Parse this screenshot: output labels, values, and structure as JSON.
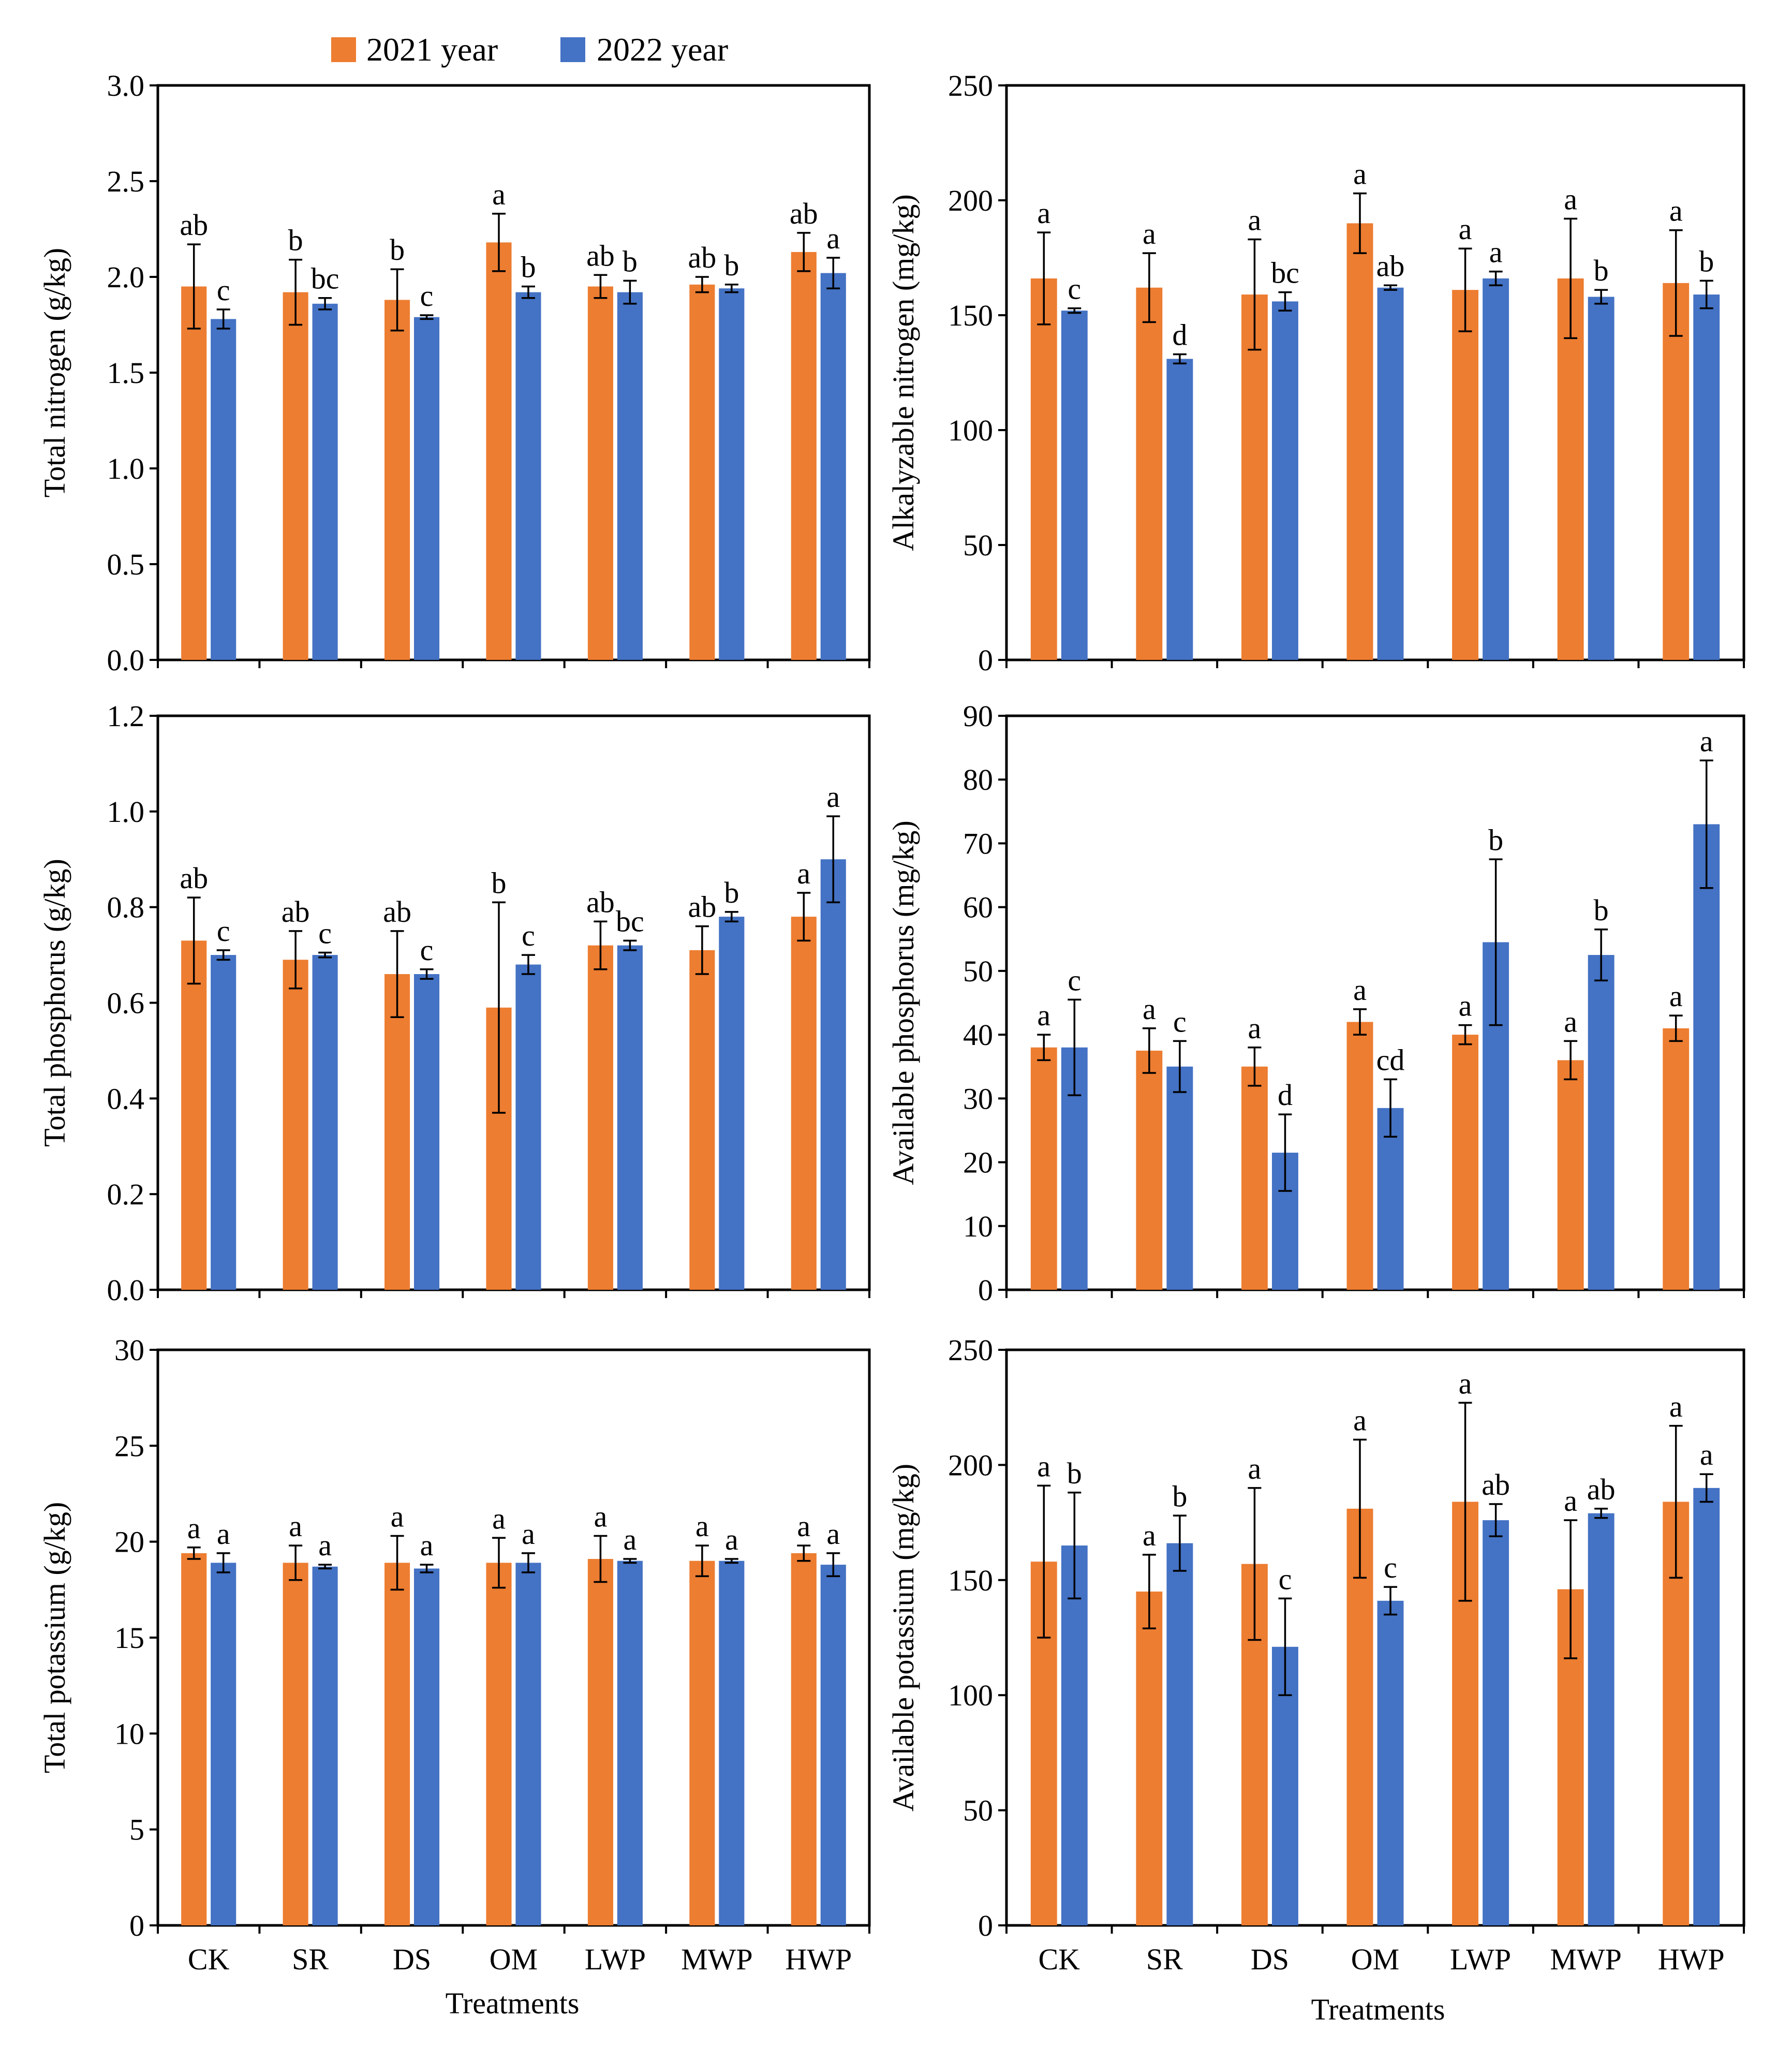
{
  "legend": {
    "items": [
      {
        "label": "2021 year",
        "color": "#ED7D31"
      },
      {
        "label": "2022 year",
        "color": "#4472C4"
      }
    ]
  },
  "xlabel": "Treatments",
  "chart_data": [
    {
      "type": "bar",
      "ylabel": "Total nitrogen (g/kg)",
      "ylim": [
        0,
        3.0
      ],
      "yticks": [
        "0.0",
        "0.5",
        "1.0",
        "1.5",
        "2.0",
        "2.5",
        "3.0"
      ],
      "categories": [
        "CK",
        "SR",
        "DS",
        "OM",
        "LWP",
        "MWP",
        "HWP"
      ],
      "series": [
        {
          "name": "2021 year",
          "values": [
            1.95,
            1.92,
            1.88,
            2.18,
            1.95,
            1.96,
            2.13
          ],
          "errors": [
            0.22,
            0.17,
            0.16,
            0.15,
            0.06,
            0.04,
            0.1
          ],
          "letters": [
            "ab",
            "b",
            "b",
            "a",
            "ab",
            "ab",
            "ab"
          ]
        },
        {
          "name": "2022 year",
          "values": [
            1.78,
            1.86,
            1.79,
            1.92,
            1.92,
            1.94,
            2.02
          ],
          "errors": [
            0.05,
            0.03,
            0.01,
            0.03,
            0.06,
            0.02,
            0.08
          ],
          "letters": [
            "c",
            "bc",
            "c",
            "b",
            "b",
            "b",
            "a"
          ]
        }
      ]
    },
    {
      "type": "bar",
      "ylabel": "Alkalyzable nitrogen (mg/kg)",
      "ylim": [
        0,
        250
      ],
      "yticks": [
        "0",
        "50",
        "100",
        "150",
        "200",
        "250"
      ],
      "categories": [
        "CK",
        "SR",
        "DS",
        "OM",
        "LWP",
        "MWP",
        "HWP"
      ],
      "series": [
        {
          "name": "2021 year",
          "values": [
            166,
            162,
            159,
            190,
            161,
            166,
            164
          ],
          "errors": [
            20,
            15,
            24,
            13,
            18,
            26,
            23
          ],
          "letters": [
            "a",
            "a",
            "a",
            "a",
            "a",
            "a",
            "a"
          ]
        },
        {
          "name": "2022 year",
          "values": [
            152,
            131,
            156,
            162,
            166,
            158,
            159
          ],
          "errors": [
            1,
            2,
            4,
            1,
            3,
            3,
            6
          ],
          "letters": [
            "c",
            "d",
            "bc",
            "ab",
            "a",
            "b",
            "b"
          ]
        }
      ]
    },
    {
      "type": "bar",
      "ylabel": "Total phosphorus (g/kg)",
      "ylim": [
        0,
        1.2
      ],
      "yticks": [
        "0.0",
        "0.2",
        "0.4",
        "0.6",
        "0.8",
        "1.0",
        "1.2"
      ],
      "categories": [
        "CK",
        "SR",
        "DS",
        "OM",
        "LWP",
        "MWP",
        "HWP"
      ],
      "series": [
        {
          "name": "2021 year",
          "values": [
            0.73,
            0.69,
            0.66,
            0.59,
            0.72,
            0.71,
            0.78
          ],
          "errors": [
            0.09,
            0.06,
            0.09,
            0.22,
            0.05,
            0.05,
            0.05
          ],
          "letters": [
            "ab",
            "ab",
            "ab",
            "b",
            "ab",
            "ab",
            "a"
          ]
        },
        {
          "name": "2022 year",
          "values": [
            0.7,
            0.7,
            0.66,
            0.68,
            0.72,
            0.78,
            0.9
          ],
          "errors": [
            0.01,
            0.005,
            0.01,
            0.02,
            0.01,
            0.01,
            0.09
          ],
          "letters": [
            "c",
            "c",
            "c",
            "c",
            "bc",
            "b",
            "a"
          ]
        }
      ]
    },
    {
      "type": "bar",
      "ylabel": "Available phosphorus (mg/kg)",
      "ylim": [
        0,
        90
      ],
      "yticks": [
        "0",
        "10",
        "20",
        "30",
        "40",
        "50",
        "60",
        "70",
        "80",
        "90"
      ],
      "categories": [
        "CK",
        "SR",
        "DS",
        "OM",
        "LWP",
        "MWP",
        "HWP"
      ],
      "series": [
        {
          "name": "2021 year",
          "values": [
            38,
            37.5,
            35,
            42,
            40,
            36,
            41
          ],
          "errors": [
            2,
            3.5,
            3,
            2,
            1.5,
            3,
            2
          ],
          "letters": [
            "a",
            "a",
            "a",
            "a",
            "a",
            "a",
            "a"
          ]
        },
        {
          "name": "2022 year",
          "values": [
            38,
            35,
            21.5,
            28.5,
            54.5,
            52.5,
            73
          ],
          "errors": [
            7.5,
            4,
            6,
            4.5,
            13,
            4,
            10
          ],
          "letters": [
            "c",
            "c",
            "d",
            "cd",
            "b",
            "b",
            "a"
          ]
        }
      ]
    },
    {
      "type": "bar",
      "ylabel": "Total potassium (g/kg)",
      "ylim": [
        0,
        30
      ],
      "yticks": [
        "0",
        "5",
        "10",
        "15",
        "20",
        "25",
        "30"
      ],
      "categories": [
        "CK",
        "SR",
        "DS",
        "OM",
        "LWP",
        "MWP",
        "HWP"
      ],
      "series": [
        {
          "name": "2021 year",
          "values": [
            19.4,
            18.9,
            18.9,
            18.9,
            19.1,
            19.0,
            19.4
          ],
          "errors": [
            0.3,
            0.9,
            1.4,
            1.3,
            1.2,
            0.8,
            0.4
          ],
          "letters": [
            "a",
            "a",
            "a",
            "a",
            "a",
            "a",
            "a"
          ]
        },
        {
          "name": "2022 year",
          "values": [
            18.9,
            18.7,
            18.6,
            18.9,
            19.0,
            19.0,
            18.8
          ],
          "errors": [
            0.5,
            0.1,
            0.2,
            0.5,
            0.1,
            0.1,
            0.6
          ],
          "letters": [
            "a",
            "a",
            "a",
            "a",
            "a",
            "a",
            "a"
          ]
        }
      ]
    },
    {
      "type": "bar",
      "ylabel": "Available potassium (mg/kg)",
      "ylim": [
        0,
        250
      ],
      "yticks": [
        "0",
        "50",
        "100",
        "150",
        "200",
        "250"
      ],
      "categories": [
        "CK",
        "SR",
        "DS",
        "OM",
        "LWP",
        "MWP",
        "HWP"
      ],
      "series": [
        {
          "name": "2021 year",
          "values": [
            158,
            145,
            157,
            181,
            184,
            146,
            184
          ],
          "errors": [
            33,
            16,
            33,
            30,
            43,
            30,
            33
          ],
          "letters": [
            "a",
            "a",
            "a",
            "a",
            "a",
            "a",
            "a"
          ]
        },
        {
          "name": "2022 year",
          "values": [
            165,
            166,
            121,
            141,
            176,
            179,
            190
          ],
          "errors": [
            23,
            12,
            21,
            6,
            7,
            2,
            6
          ],
          "letters": [
            "b",
            "b",
            "c",
            "c",
            "ab",
            "ab",
            "a"
          ]
        }
      ]
    }
  ]
}
